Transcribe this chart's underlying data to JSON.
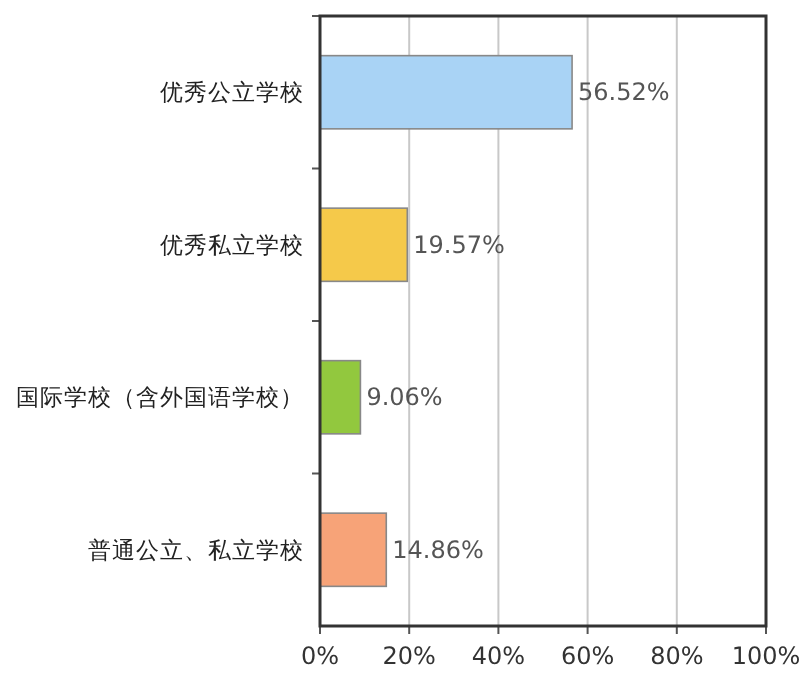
{
  "chart_data": {
    "type": "bar",
    "orientation": "horizontal",
    "categories": [
      "优秀公立学校",
      "优秀私立学校",
      "国际学校（含外国语学校）",
      "普通公立、私立学校"
    ],
    "values": [
      56.52,
      19.57,
      9.06,
      14.86
    ],
    "colors": [
      "#a9d3f5",
      "#f5c94a",
      "#92c83e",
      "#f7a378"
    ],
    "value_labels": [
      "56.52%",
      "19.57%",
      "9.06%",
      "14.86%"
    ],
    "xlim": [
      0,
      100
    ],
    "xticks": [
      {
        "value": 0,
        "label": "0%"
      },
      {
        "value": 20,
        "label": "20%"
      },
      {
        "value": 40,
        "label": "40%"
      },
      {
        "value": 60,
        "label": "60%"
      },
      {
        "value": 80,
        "label": "80%"
      },
      {
        "value": 100,
        "label": "100%"
      }
    ],
    "grid": "x"
  }
}
